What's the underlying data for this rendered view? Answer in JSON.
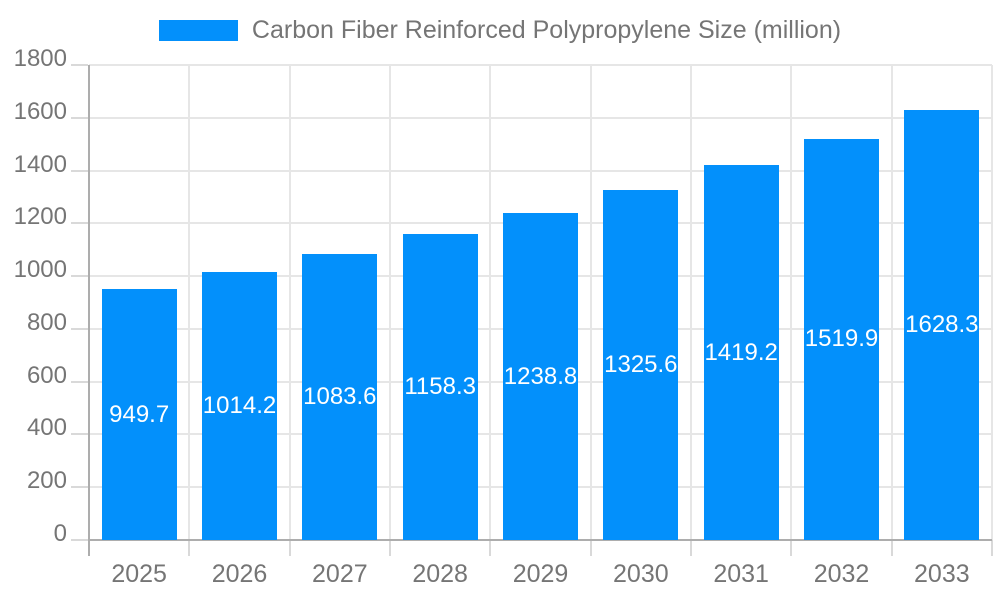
{
  "chart_data": {
    "type": "bar",
    "title": "Carbon Fiber Reinforced Polypropylene Size (million)",
    "categories": [
      "2025",
      "2026",
      "2027",
      "2028",
      "2029",
      "2030",
      "2031",
      "2032",
      "2033"
    ],
    "series": [
      {
        "name": "Carbon Fiber Reinforced Polypropylene Size (million)",
        "values": [
          949.7,
          1014.2,
          1083.6,
          1158.3,
          1238.8,
          1325.6,
          1419.2,
          1519.9,
          1628.3
        ]
      }
    ],
    "value_labels": [
      "949.7",
      "1014.2",
      "1083.6",
      "1158.3",
      "1238.8",
      "1325.6",
      "1419.2",
      "1519.9",
      "1628.3"
    ],
    "xlabel": "",
    "ylabel": "",
    "ylim": [
      0,
      1800
    ],
    "y_ticks": [
      0,
      200,
      400,
      600,
      800,
      1000,
      1200,
      1400,
      1600,
      1800
    ],
    "legend_position": "top",
    "grid": true,
    "colors": {
      "bar": "#0390fb",
      "grid": "#e6e6e6",
      "axis": "#adadad",
      "tick": "#d9d9d9",
      "text": "#757575",
      "value_text": "#ffffff",
      "background": "#ffffff"
    }
  }
}
